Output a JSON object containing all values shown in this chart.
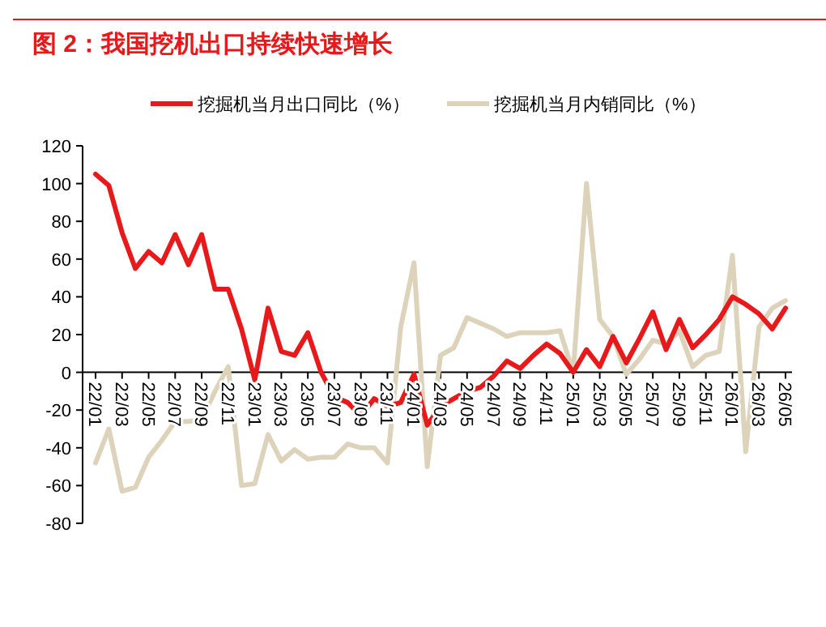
{
  "chart_data": {
    "type": "line",
    "title": "图 2：我国挖机出口持续快速增长",
    "categories": [
      "22/01",
      null,
      "22/03",
      null,
      "22/05",
      null,
      "22/07",
      null,
      "22/09",
      null,
      "22/11",
      null,
      "23/01",
      null,
      "23/03",
      null,
      "23/05",
      null,
      "23/07",
      null,
      "23/09",
      null,
      "23/11",
      null,
      "24/01",
      null,
      "24/03",
      null,
      "24/05",
      null,
      "24/07",
      null,
      "24/09",
      null,
      "24/11",
      null,
      "25/01",
      null,
      "25/03",
      null,
      "25/05",
      null,
      "25/07",
      null,
      "25/09",
      null,
      "25/11",
      null,
      "26/01",
      null,
      "26/03",
      null,
      "26/05"
    ],
    "series": [
      {
        "name": "挖掘机当月出口同比（%）",
        "color": "#e8191a",
        "values": [
          105,
          99,
          74,
          55,
          64,
          58,
          73,
          57,
          73,
          44,
          44,
          23,
          -4,
          34,
          11,
          9,
          21,
          0,
          -13,
          -16,
          -23,
          -14,
          -18,
          -16,
          -1,
          -28,
          -18,
          -14,
          -10,
          -8,
          -2,
          6,
          2,
          9,
          15,
          10,
          0,
          12,
          3,
          19,
          5,
          18,
          32,
          12,
          28,
          13,
          20,
          28,
          40,
          36,
          31,
          23,
          34
        ]
      },
      {
        "name": "挖掘机当月内销同比（%）",
        "color": "#ddd3bb",
        "values": [
          -48,
          -30,
          -63,
          -61,
          -45,
          -36,
          -26,
          -26,
          -25,
          -10,
          3,
          -60,
          -59,
          -33,
          -47,
          -41,
          -46,
          -45,
          -45,
          -38,
          -40,
          -40,
          -48,
          24,
          58,
          -50,
          9,
          13,
          29,
          26,
          23,
          19,
          21,
          21,
          21,
          22,
          0,
          100,
          28,
          19,
          -1,
          7,
          17,
          15,
          22,
          3,
          9,
          11,
          62,
          -42,
          24,
          34,
          38
        ]
      }
    ],
    "ylim": [
      -80,
      120
    ],
    "yticks": [
      -80,
      -60,
      -40,
      -20,
      0,
      20,
      40,
      60,
      80,
      100,
      120
    ],
    "legend": "top",
    "grid": false
  }
}
